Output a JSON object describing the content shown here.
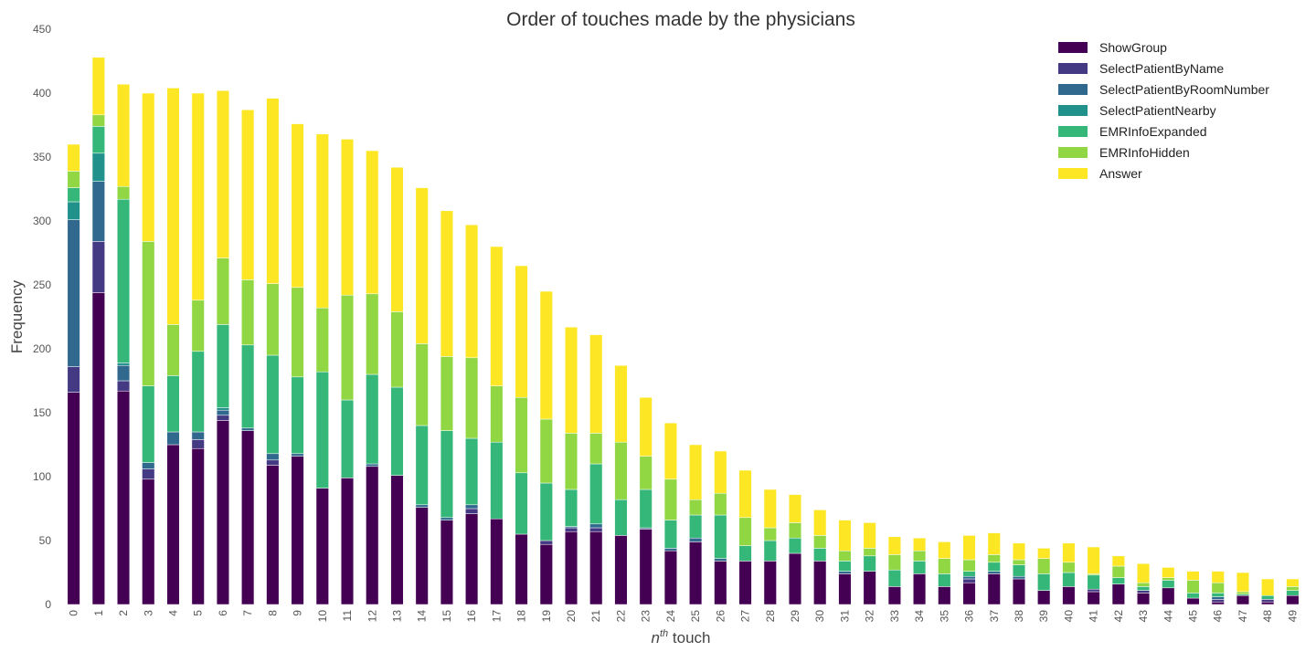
{
  "chart_data": {
    "type": "bar",
    "stacked": true,
    "title": "Order of touches made by the physicians",
    "xlabel_math": "n",
    "xlabel_sup": "th",
    "xlabel_text": " touch",
    "ylabel": "Frequency",
    "ylim": [
      0,
      450
    ],
    "yticks": [
      0,
      50,
      100,
      150,
      200,
      250,
      300,
      350,
      400,
      450
    ],
    "grid": false,
    "legend_position": "top-right",
    "categories": [
      "0",
      "1",
      "2",
      "3",
      "4",
      "5",
      "6",
      "7",
      "8",
      "9",
      "10",
      "11",
      "12",
      "13",
      "14",
      "15",
      "16",
      "17",
      "18",
      "19",
      "20",
      "21",
      "22",
      "23",
      "24",
      "25",
      "26",
      "27",
      "28",
      "29",
      "30",
      "31",
      "32",
      "33",
      "34",
      "35",
      "36",
      "37",
      "38",
      "39",
      "40",
      "41",
      "42",
      "43",
      "44",
      "45",
      "46",
      "47",
      "48",
      "49"
    ],
    "series": [
      {
        "name": "ShowGroup",
        "color": "#440154",
        "values": [
          166,
          244,
          167,
          98,
          125,
          122,
          144,
          136,
          109,
          116,
          91,
          99,
          108,
          101,
          76,
          66,
          71,
          67,
          55,
          47,
          57,
          57,
          54,
          59,
          42,
          49,
          34,
          34,
          34,
          40,
          34,
          24,
          26,
          14,
          24,
          14,
          17,
          24,
          20,
          11,
          14,
          10,
          16,
          9,
          13,
          5,
          2,
          7,
          2,
          7
        ]
      },
      {
        "name": "SelectPatientByName",
        "color": "#443983",
        "values": [
          20,
          40,
          8,
          8,
          0,
          7,
          4,
          0,
          4,
          0,
          0,
          0,
          0,
          0,
          0,
          0,
          4,
          0,
          0,
          3,
          3,
          3,
          0,
          0,
          0,
          0,
          0,
          0,
          0,
          0,
          0,
          0,
          0,
          0,
          0,
          0,
          3,
          0,
          0,
          0,
          0,
          2,
          0,
          2,
          0,
          0,
          2,
          0,
          2,
          0
        ]
      },
      {
        "name": "SelectPatientByRoomNumber",
        "color": "#31688e",
        "values": [
          115,
          47,
          12,
          5,
          10,
          6,
          4,
          2,
          5,
          2,
          0,
          0,
          2,
          0,
          2,
          2,
          3,
          0,
          0,
          0,
          1,
          3,
          0,
          1,
          2,
          3,
          2,
          0,
          0,
          0,
          0,
          2,
          0,
          0,
          0,
          0,
          2,
          2,
          2,
          0,
          0,
          0,
          0,
          0,
          0,
          0,
          2,
          0,
          0,
          0
        ]
      },
      {
        "name": "SelectPatientNearby",
        "color": "#21918c",
        "values": [
          14,
          22,
          2,
          0,
          0,
          0,
          2,
          0,
          0,
          0,
          0,
          0,
          0,
          0,
          0,
          0,
          0,
          0,
          0,
          0,
          0,
          0,
          0,
          0,
          0,
          0,
          0,
          0,
          0,
          0,
          0,
          0,
          0,
          0,
          0,
          0,
          0,
          0,
          0,
          0,
          0,
          0,
          0,
          0,
          0,
          0,
          0,
          0,
          0,
          0
        ]
      },
      {
        "name": "EMRInfoExpanded",
        "color": "#35b779",
        "values": [
          11,
          21,
          128,
          60,
          44,
          63,
          65,
          65,
          77,
          60,
          91,
          61,
          70,
          69,
          62,
          68,
          52,
          60,
          48,
          45,
          29,
          47,
          28,
          30,
          22,
          18,
          34,
          12,
          16,
          12,
          10,
          8,
          12,
          13,
          10,
          10,
          4,
          7,
          9,
          13,
          11,
          11,
          5,
          3,
          6,
          4,
          3,
          1,
          3,
          4
        ]
      },
      {
        "name": "EMRInfoHidden",
        "color": "#90d743",
        "values": [
          13,
          9,
          10,
          113,
          40,
          40,
          52,
          51,
          56,
          70,
          50,
          82,
          63,
          59,
          64,
          58,
          63,
          44,
          59,
          50,
          44,
          24,
          45,
          26,
          32,
          12,
          17,
          22,
          10,
          12,
          10,
          8,
          6,
          12,
          8,
          12,
          9,
          6,
          4,
          12,
          8,
          1,
          9,
          3,
          2,
          10,
          8,
          2,
          0,
          3
        ]
      },
      {
        "name": "Answer",
        "color": "#fde725",
        "values": [
          21,
          45,
          80,
          116,
          185,
          162,
          131,
          133,
          145,
          128,
          136,
          122,
          112,
          113,
          122,
          114,
          104,
          109,
          103,
          100,
          83,
          77,
          60,
          46,
          44,
          43,
          33,
          37,
          30,
          22,
          20,
          24,
          20,
          14,
          10,
          13,
          19,
          17,
          13,
          8,
          15,
          21,
          8,
          15,
          8,
          7,
          9,
          15,
          13,
          6
        ]
      }
    ]
  }
}
